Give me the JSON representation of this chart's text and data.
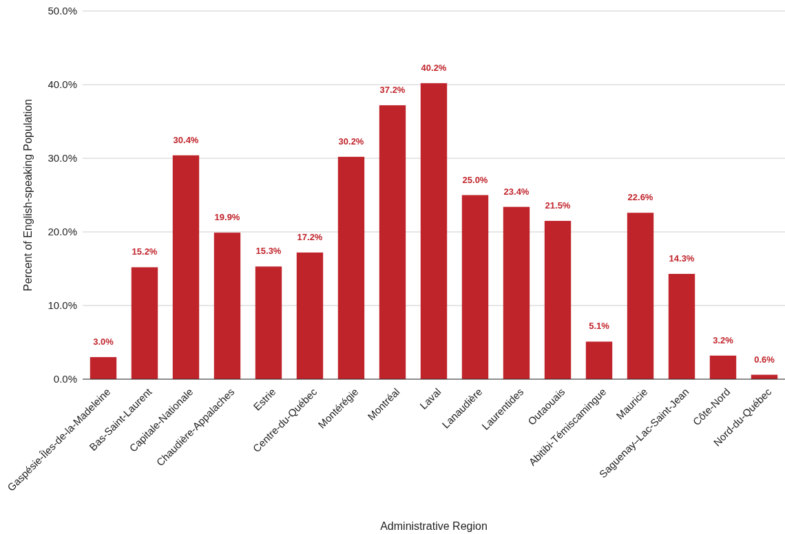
{
  "chart_data": {
    "type": "bar",
    "xlabel": "Administrative Region",
    "ylabel": "Percent of English-speaking Population",
    "categories": [
      "Gaspésie-Îles-de-la-Madeleine",
      "Bas-Saint-Laurent",
      "Capitale-Nationale",
      "Chaudière-Appalaches",
      "Estrie",
      "Centre-du-Québec",
      "Montérégie",
      "Montréal",
      "Laval",
      "Lanaudière",
      "Laurentides",
      "Outaouais",
      "Abitibi-Témiscamingue",
      "Mauricie",
      "Saguenay–Lac-Saint-Jean",
      "Côte-Nord",
      "Nord-du-Québec"
    ],
    "values": [
      3.0,
      15.2,
      30.4,
      19.9,
      15.3,
      17.2,
      30.2,
      37.2,
      40.2,
      25.0,
      23.4,
      21.5,
      5.1,
      22.6,
      14.3,
      3.2,
      0.6
    ],
    "value_labels": [
      "3.0%",
      "15.2%",
      "30.4%",
      "19.9%",
      "15.3%",
      "17.2%",
      "30.2%",
      "37.2%",
      "40.2%",
      "25.0%",
      "23.4%",
      "21.5%",
      "5.1%",
      "22.6%",
      "14.3%",
      "3.2%",
      "0.6%"
    ],
    "color": "#c0242b",
    "ylim": [
      0,
      50
    ],
    "yticks": [
      {
        "value": 0,
        "label": "0.0%"
      },
      {
        "value": 10,
        "label": "10.0%"
      },
      {
        "value": 20,
        "label": "20.0%"
      },
      {
        "value": 30,
        "label": "30.0%"
      },
      {
        "value": 40,
        "label": "40.0%"
      },
      {
        "value": 50,
        "label": "50.0%"
      }
    ],
    "grid": "y"
  }
}
